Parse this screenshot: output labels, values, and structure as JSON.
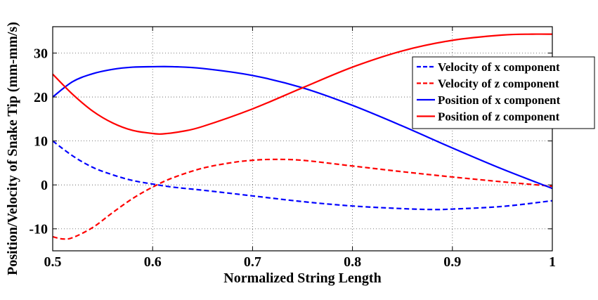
{
  "chart_data": {
    "type": "line",
    "title": "",
    "xlabel": "Normalized String Length",
    "ylabel": "Position/Velocity of Snake Tip (mm-mm/s)",
    "xlim": [
      0.5,
      1.0
    ],
    "ylim": [
      -15,
      36
    ],
    "xticks": [
      0.5,
      0.6,
      0.7,
      0.8,
      0.9,
      1.0
    ],
    "xtick_labels": [
      "0.5",
      "0.6",
      "0.7",
      "0.8",
      "0.9",
      "1"
    ],
    "yticks": [
      -10,
      0,
      10,
      20,
      30
    ],
    "ytick_labels": [
      "-10",
      "0",
      "10",
      "20",
      "30"
    ],
    "grid": true,
    "legend_position": "top-right",
    "series": [
      {
        "name": "Velocity of x component",
        "color": "#0000ff",
        "style": "dashed",
        "x": [
          0.5,
          0.52,
          0.54,
          0.56,
          0.58,
          0.6,
          0.62,
          0.65,
          0.7,
          0.75,
          0.8,
          0.85,
          0.88,
          0.9,
          0.95,
          1.0
        ],
        "y": [
          10.0,
          6.6,
          4.0,
          2.3,
          1.0,
          0.2,
          -0.5,
          -1.2,
          -2.5,
          -3.8,
          -4.8,
          -5.4,
          -5.6,
          -5.5,
          -4.9,
          -3.6
        ]
      },
      {
        "name": "Velocity of z component",
        "color": "#ff0000",
        "style": "dashed",
        "x": [
          0.5,
          0.51,
          0.52,
          0.54,
          0.56,
          0.58,
          0.6,
          0.62,
          0.65,
          0.68,
          0.7,
          0.72,
          0.75,
          0.8,
          0.85,
          0.9,
          0.95,
          1.0
        ],
        "y": [
          -11.8,
          -12.3,
          -12.0,
          -9.7,
          -6.3,
          -3.1,
          -0.5,
          1.6,
          3.8,
          5.1,
          5.6,
          5.8,
          5.6,
          4.3,
          3.0,
          1.8,
          0.7,
          -0.3
        ]
      },
      {
        "name": "Position of x component",
        "color": "#0000ff",
        "style": "solid",
        "x": [
          0.5,
          0.52,
          0.54,
          0.56,
          0.58,
          0.6,
          0.62,
          0.65,
          0.7,
          0.75,
          0.8,
          0.85,
          0.9,
          0.95,
          1.0
        ],
        "y": [
          20.0,
          23.5,
          25.3,
          26.3,
          26.8,
          26.9,
          26.9,
          26.5,
          24.9,
          22.1,
          18.1,
          13.4,
          8.4,
          3.6,
          -0.8
        ]
      },
      {
        "name": "Position of z component",
        "color": "#ff0000",
        "style": "solid",
        "x": [
          0.5,
          0.52,
          0.54,
          0.56,
          0.58,
          0.6,
          0.61,
          0.63,
          0.65,
          0.7,
          0.75,
          0.8,
          0.85,
          0.9,
          0.95,
          0.98,
          1.0
        ],
        "y": [
          25.2,
          20.6,
          16.8,
          14.1,
          12.4,
          11.7,
          11.6,
          12.2,
          13.3,
          17.3,
          22.1,
          26.8,
          30.5,
          32.9,
          34.1,
          34.3,
          34.3
        ]
      }
    ]
  }
}
